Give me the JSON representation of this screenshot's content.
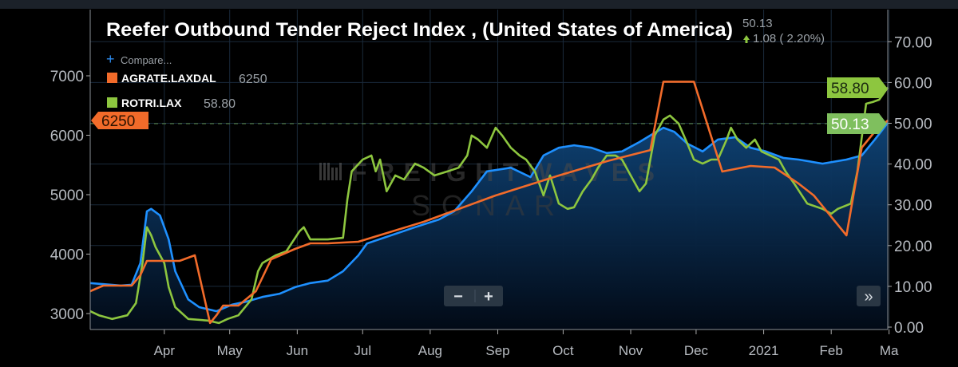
{
  "chart_data": {
    "type": "line",
    "title": "Reefer Outbound Tender Reject Index , (United States of America)",
    "header": {
      "value": "50.13",
      "change": "1.08 ( 2.20%)",
      "change_direction": "up"
    },
    "compare_label": "Compare...",
    "x_origin_date": "2020-02-27",
    "x_unit": "days since origin",
    "x_tick_labels": [
      "Apr",
      "May",
      "Jun",
      "Jul",
      "Aug",
      "Sep",
      "Oct",
      "Nov",
      "Dec",
      "2021",
      "Feb",
      "Ma"
    ],
    "x_tick_days": [
      34,
      64,
      95,
      125,
      156,
      187,
      217,
      248,
      278,
      309,
      340,
      368
    ],
    "x_range": [
      0,
      368
    ],
    "y_left": {
      "range": [
        2800,
        7400
      ],
      "ticks": [
        "3000",
        "4000",
        "5000",
        "6000",
        "7000"
      ]
    },
    "y_right": {
      "range": [
        0,
        76
      ],
      "ticks": [
        "0.00",
        "10.00",
        "20.00",
        "30.00",
        "40.00",
        "50.00",
        "60.00",
        "70.00"
      ]
    },
    "grid": true,
    "legend": {
      "placement": "top-left",
      "entries": [
        {
          "name": "AGRATE.LAXDAL",
          "value": "6250",
          "color": "#f26b2a"
        },
        {
          "name": "ROTRI.LAX",
          "value": "58.80",
          "color": "#8dc63f"
        }
      ]
    },
    "tags": {
      "left": "6250",
      "right_green": "58.80",
      "right_index": "50.13"
    },
    "series": [
      {
        "name": "Reefer Outbound Tender Reject Index",
        "axis": "right",
        "color": "#1e90ff",
        "area": true,
        "x": [
          0,
          14,
          19,
          23,
          26,
          28,
          32,
          36,
          39,
          45,
          50,
          58,
          65,
          72,
          79,
          87,
          94,
          101,
          109,
          116,
          123,
          127,
          138,
          149,
          160,
          167,
          175,
          182,
          193,
          202,
          208,
          215,
          222,
          230,
          237,
          244,
          252,
          257,
          263,
          268,
          274,
          281,
          288,
          296,
          303,
          310,
          318,
          325,
          336,
          347,
          354,
          360,
          366
        ],
        "y": [
          10.8,
          10.2,
          10.4,
          15.7,
          28.4,
          29.0,
          27.4,
          21.5,
          13.7,
          6.8,
          4.9,
          3.9,
          5.5,
          6.3,
          7.4,
          8.2,
          9.8,
          10.8,
          11.4,
          13.7,
          17.6,
          20.5,
          22.5,
          24.5,
          26.4,
          28.4,
          33.3,
          38.2,
          39.1,
          36.8,
          42.1,
          44.0,
          44.6,
          44.0,
          42.7,
          43.1,
          45.4,
          47.0,
          48.9,
          47.9,
          45.0,
          43.1,
          46.0,
          46.6,
          44.0,
          43.1,
          41.5,
          41.1,
          40.1,
          41.1,
          42.1,
          46.0,
          50.13
        ]
      },
      {
        "name": "ROTRI.LAX",
        "axis": "right",
        "color": "#8dc63f",
        "x": [
          0,
          4,
          10,
          17,
          21,
          24,
          26,
          28,
          30,
          34,
          36,
          39,
          45,
          54,
          59,
          63,
          68,
          74,
          77,
          79,
          85,
          90,
          96,
          98,
          101,
          109,
          116,
          118,
          120,
          125,
          129,
          131,
          133,
          136,
          140,
          144,
          149,
          153,
          158,
          164,
          169,
          173,
          175,
          178,
          182,
          186,
          189,
          193,
          197,
          200,
          204,
          208,
          211,
          215,
          219,
          222,
          226,
          230,
          233,
          237,
          241,
          244,
          248,
          252,
          255,
          257,
          259,
          263,
          266,
          270,
          274,
          277,
          281,
          285,
          288,
          292,
          294,
          297,
          301,
          305,
          308,
          312,
          316,
          319,
          323,
          329,
          336,
          340,
          343,
          349,
          352,
          356,
          359,
          362,
          366
        ],
        "y": [
          3.9,
          2.9,
          2.0,
          2.9,
          5.9,
          15.7,
          24.5,
          22.5,
          19.6,
          15.7,
          9.8,
          4.9,
          2.0,
          1.6,
          1.0,
          2.0,
          2.9,
          6.8,
          13.7,
          15.7,
          17.6,
          18.6,
          23.5,
          24.5,
          21.5,
          21.5,
          21.9,
          31.3,
          38.2,
          41.1,
          42.1,
          38.2,
          41.1,
          33.3,
          37.2,
          36.2,
          40.1,
          39.1,
          37.2,
          38.2,
          39.1,
          42.1,
          47.0,
          46.0,
          44.0,
          48.9,
          47.0,
          44.0,
          42.1,
          41.1,
          38.2,
          32.3,
          37.2,
          30.3,
          29.0,
          29.4,
          33.3,
          36.2,
          39.1,
          42.1,
          42.1,
          41.1,
          37.2,
          33.3,
          35.2,
          41.1,
          47.0,
          50.9,
          51.9,
          49.9,
          45.0,
          41.1,
          40.1,
          41.1,
          41.1,
          46.0,
          48.9,
          46.0,
          44.0,
          46.0,
          43.1,
          42.1,
          41.1,
          38.2,
          35.2,
          30.3,
          29.0,
          27.8,
          29.0,
          30.3,
          38.2,
          54.8,
          55.2,
          55.8,
          58.8
        ]
      },
      {
        "name": "AGRATE.LAXDAL",
        "axis": "left",
        "color": "#f26b2a",
        "x": [
          0,
          6,
          19,
          23,
          26,
          41,
          48,
          55,
          58,
          61,
          68,
          76,
          83,
          94,
          101,
          109,
          123,
          153,
          186,
          215,
          237,
          257,
          263,
          277,
          290,
          303,
          314,
          325,
          332,
          347,
          354,
          360,
          366
        ],
        "y": [
          3376,
          3470,
          3470,
          3644,
          3886,
          3886,
          3980,
          2840,
          2973,
          3134,
          3134,
          3376,
          3913,
          4087,
          4181,
          4181,
          4208,
          4543,
          4986,
          5322,
          5563,
          5751,
          6900,
          6900,
          5389,
          5483,
          5456,
          5187,
          4986,
          4315,
          5791,
          6060,
          6250
        ]
      }
    ]
  },
  "controls": {
    "zoom_out": "−",
    "zoom_in": "+",
    "scroll_end": "»"
  },
  "watermark": {
    "line1": "FREIGHTWAVES",
    "line2": "SONAR"
  }
}
